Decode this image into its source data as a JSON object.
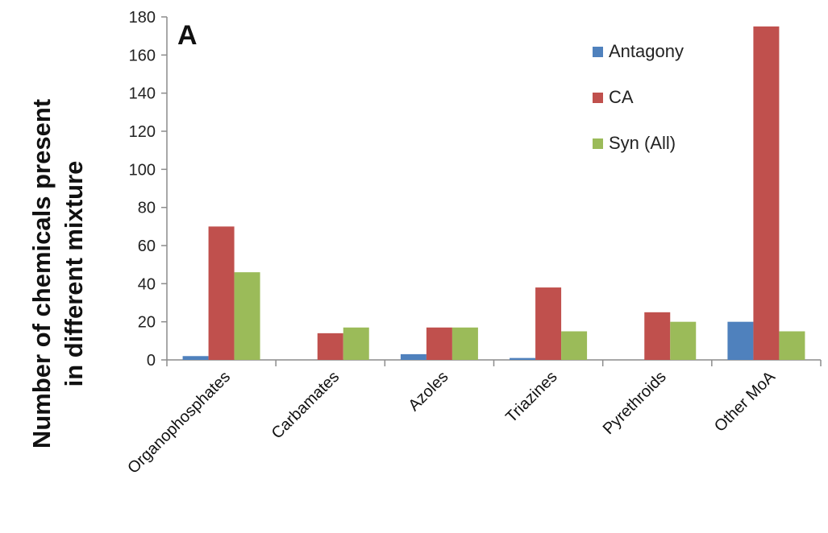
{
  "chart_data": {
    "type": "bar",
    "panel_label": "A",
    "ylabel_lines": [
      "Number of chemicals present",
      "in different mixture"
    ],
    "xlabel": "",
    "categories": [
      "Organophosphates",
      "Carbamates",
      "Azoles",
      "Triazines",
      "Pyrethroids",
      "Other MoA"
    ],
    "series": [
      {
        "name": "Antagony",
        "color": "#4f81bd",
        "values": [
          2,
          0,
          3,
          1,
          0,
          20
        ]
      },
      {
        "name": "CA",
        "color": "#c0504d",
        "values": [
          70,
          14,
          17,
          38,
          25,
          175
        ]
      },
      {
        "name": "Syn (All)",
        "color": "#9bbb59",
        "values": [
          46,
          17,
          17,
          15,
          20,
          15
        ]
      }
    ],
    "ylim": [
      0,
      180
    ],
    "yticks": [
      0,
      20,
      40,
      60,
      80,
      100,
      120,
      140,
      160,
      180
    ],
    "grid": false,
    "legend_position": "top-right"
  }
}
